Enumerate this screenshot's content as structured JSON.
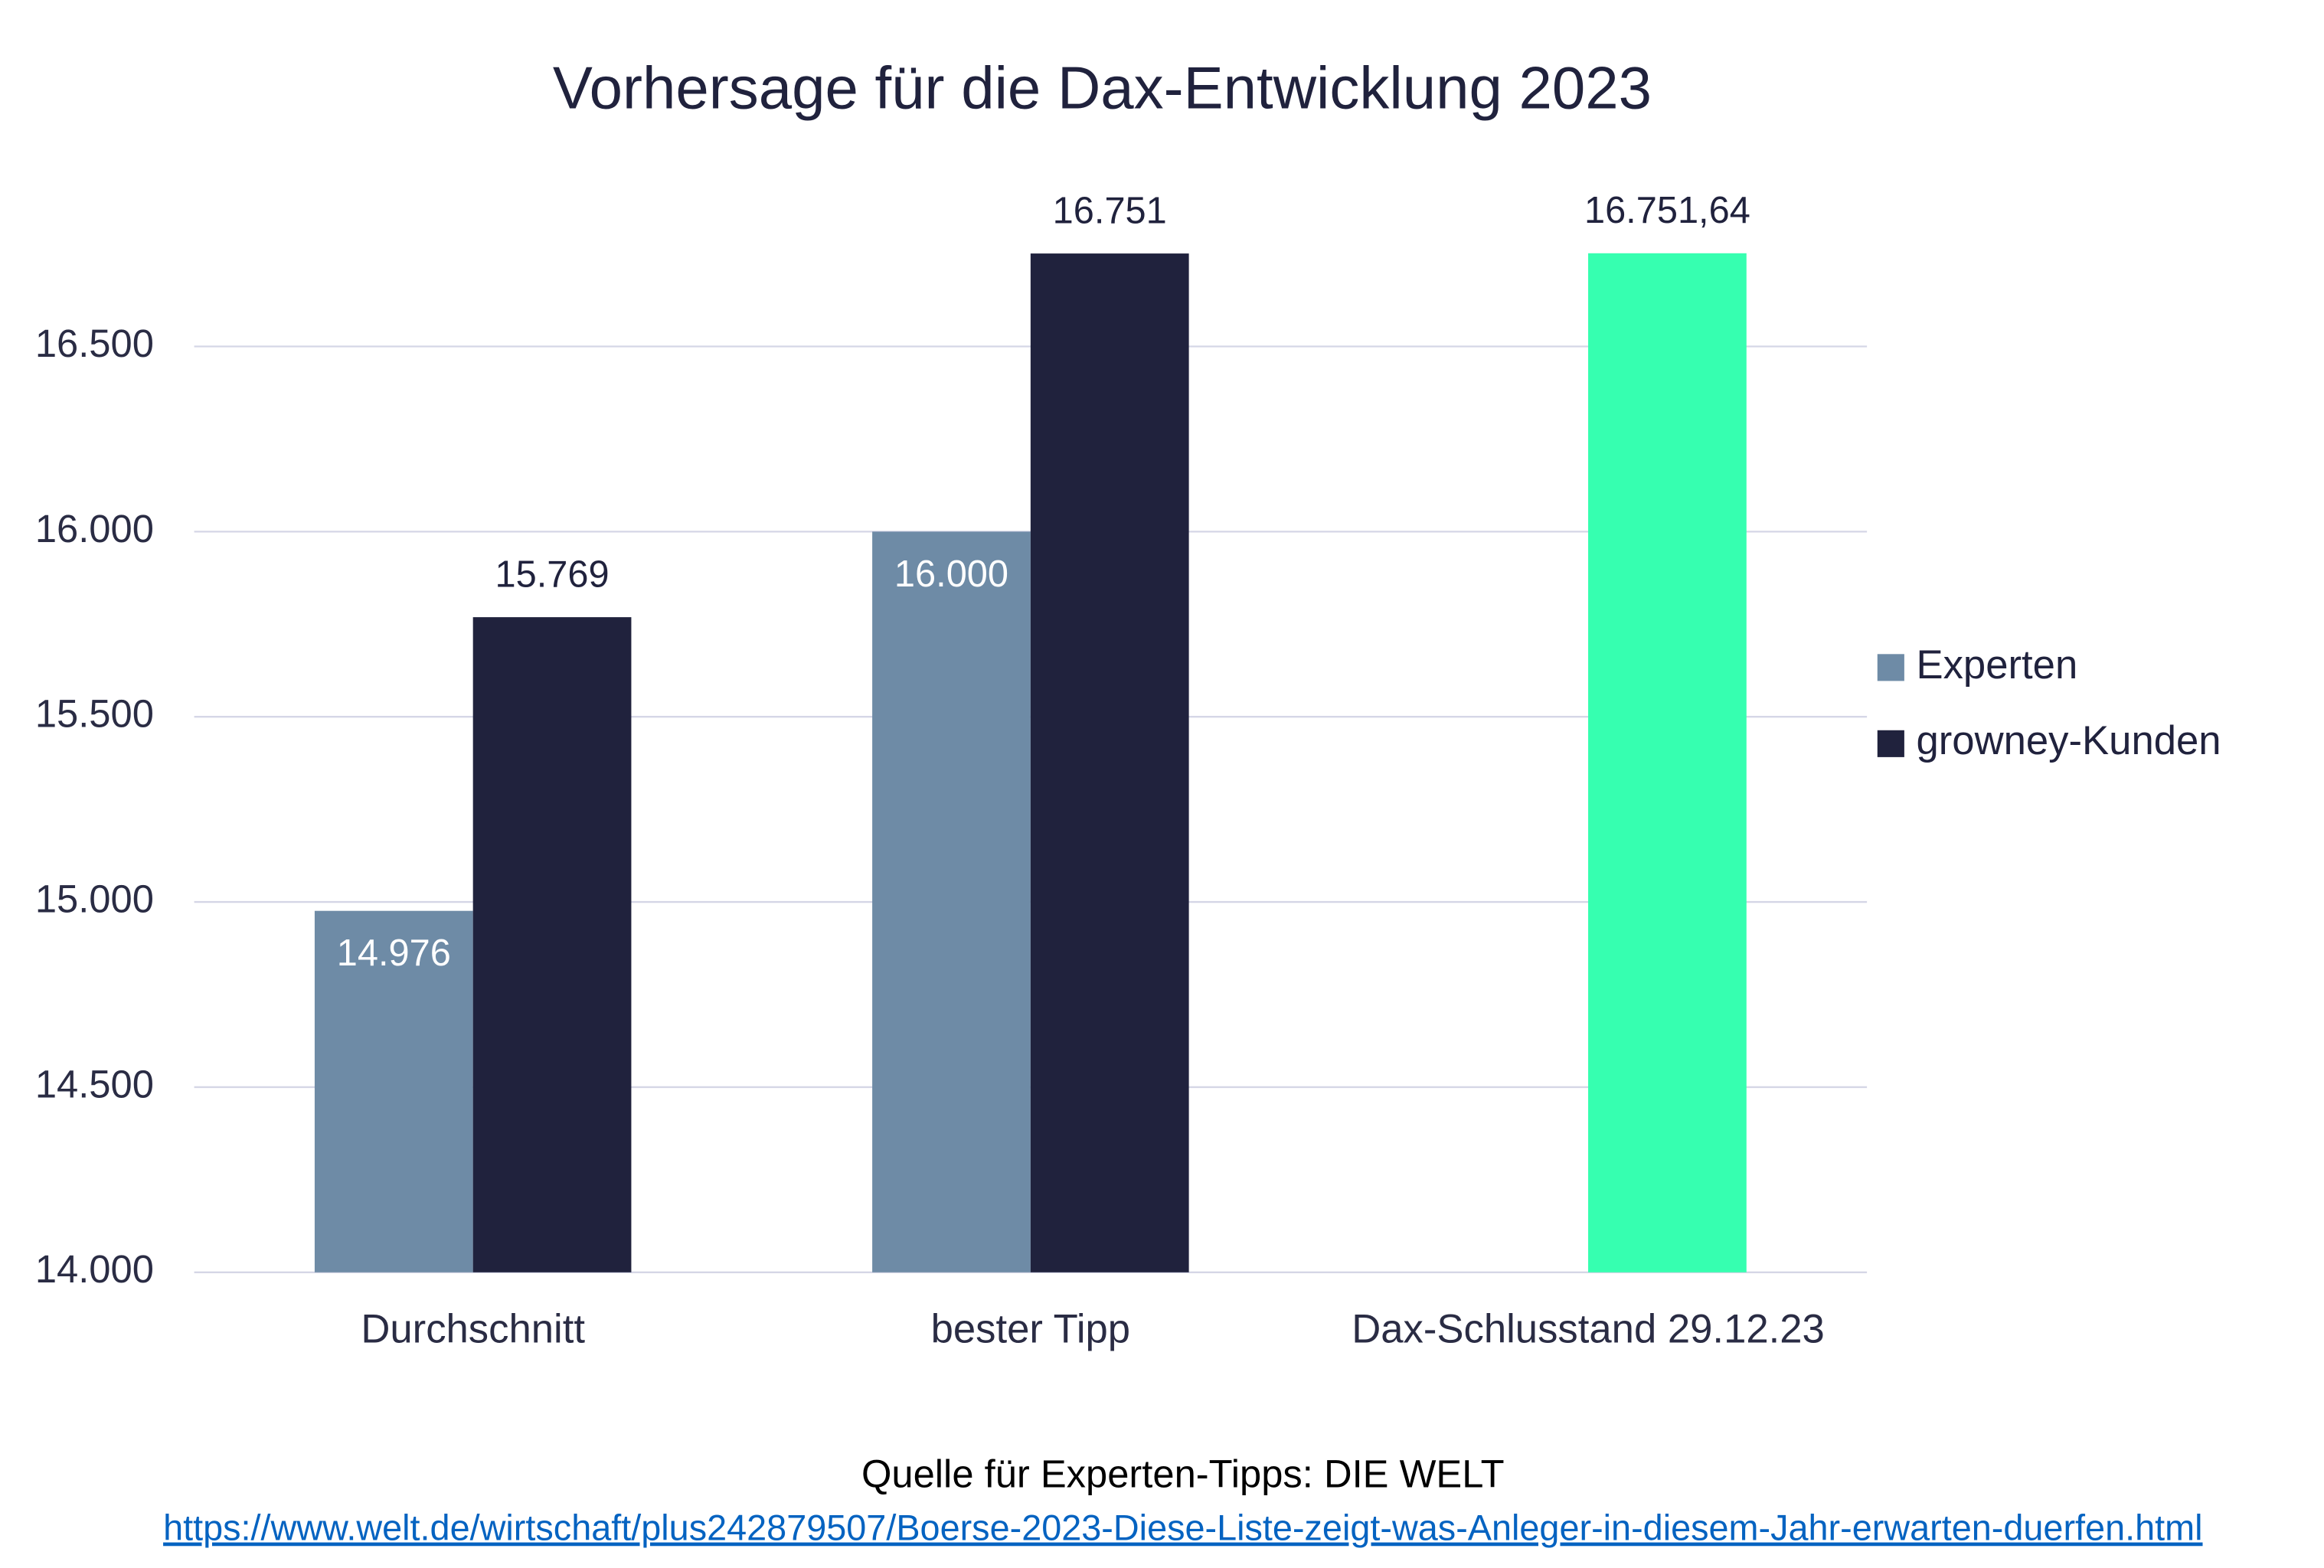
{
  "chart_data": {
    "type": "bar",
    "title": "Vorhersage für die Dax-Entwicklung 2023",
    "categories": [
      "Durchschnitt",
      "bester Tipp",
      "Dax-Schlusstand 29.12.23"
    ],
    "series": [
      {
        "name": "Experten",
        "color": "#6e8ba6",
        "values": [
          14976,
          16000,
          null
        ],
        "value_labels": [
          "14.976",
          "16.000",
          null
        ]
      },
      {
        "name": "growney-Kunden",
        "color": "#20223d",
        "colors": [
          "#20223d",
          "#20223d",
          "#36ffb0"
        ],
        "values": [
          15769,
          16751,
          16751.64
        ],
        "value_labels": [
          "15.769",
          "16.751",
          "16.751,64"
        ]
      }
    ],
    "ylim": [
      14000,
      17000
    ],
    "yticks": [
      {
        "value": 14000,
        "label": "14.000"
      },
      {
        "value": 14500,
        "label": "14.500"
      },
      {
        "value": 15000,
        "label": "15.000"
      },
      {
        "value": 15500,
        "label": "15.500"
      },
      {
        "value": 16000,
        "label": "16.000"
      },
      {
        "value": 16500,
        "label": "16.500"
      }
    ],
    "grid": true,
    "legend": "right",
    "source": "Quelle für Experten-Tipps: DIE WELT",
    "source_url": "https://www.welt.de/wirtschaft/plus242879507/Boerse-2023-Diese-Liste-zeigt-was-Anleger-in-diesem-Jahr-erwarten-duerfen.html"
  }
}
